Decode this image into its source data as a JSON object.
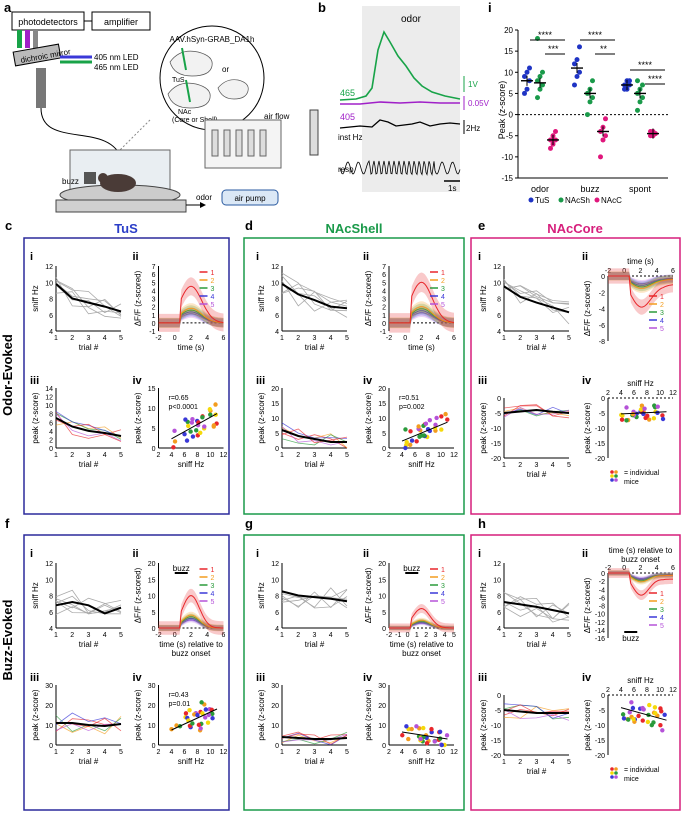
{
  "panel_letters": [
    "a",
    "b",
    "i",
    "c",
    "d",
    "e",
    "f",
    "g",
    "h"
  ],
  "colors": {
    "tus": "#1f34c4",
    "nacsh": "#1a9a4a",
    "nacc": "#e0177c",
    "green": "#18a348",
    "purple": "#a020c8",
    "red": "#e8262b",
    "orange": "#f39c1f",
    "t3": "#2a9a3b",
    "t4": "#3a38d8",
    "t5": "#b552d8",
    "grey": "#999999"
  },
  "trial_colors": [
    "#e8262b",
    "#f39c1f",
    "#2a9a3b",
    "#3a38d8",
    "#b552d8"
  ],
  "panel_a": {
    "photodetectors": "photodetectors",
    "amplifier": "amplifier",
    "mirror": "dichroic mirror",
    "led405": "405 nm LED",
    "led465": "465 nm LED",
    "virus": "AAV.hSyn-GRAB_DA1h",
    "or": "or",
    "tus": "TuS",
    "nac": "NAc",
    "nac_sub": "(Core or Shell)",
    "air_flow": "air flow",
    "buzz": "buzz",
    "odor": "odor",
    "air_pump": "air pump"
  },
  "panel_b": {
    "odor": "odor",
    "s465": "465",
    "s405": "405",
    "scale_1v": "1V",
    "scale_005v": "0.05V",
    "inst_hz": "inst Hz",
    "scale_2hz": "2Hz",
    "resp": "resp",
    "scale_1s": "1s"
  },
  "panel_i": {
    "ylabel": "Peak (z-score)",
    "yticks": [
      "-15",
      "-10",
      "-5",
      "0",
      "5",
      "10",
      "15",
      "20"
    ],
    "groups": [
      "odor",
      "buzz",
      "spont"
    ],
    "legend": [
      "TuS",
      "NAcSh",
      "NAcC"
    ],
    "sig": [
      "****",
      "***",
      "****",
      "**",
      "****",
      "****"
    ],
    "chart_data": {
      "type": "scatter",
      "title": "",
      "ylabel": "Peak (z-score)",
      "ylim": [
        -15,
        20
      ],
      "categories": [
        "odor",
        "buzz",
        "spont"
      ],
      "series": [
        {
          "name": "TuS",
          "means": [
            8,
            11,
            7
          ],
          "points": [
            [
              5,
              6,
              8,
              9,
              10,
              11
            ],
            [
              7,
              9,
              10,
              12,
              13,
              16
            ],
            [
              6,
              6,
              7,
              7,
              8,
              8
            ]
          ]
        },
        {
          "name": "NAcSh",
          "means": [
            7.5,
            5,
            5
          ],
          "points": [
            [
              4,
              6,
              7,
              8,
              9,
              10,
              18
            ],
            [
              0,
              3,
              4,
              5,
              6,
              8
            ],
            [
              1,
              3,
              4,
              5,
              6,
              7,
              8
            ]
          ]
        },
        {
          "name": "NAcC",
          "means": [
            -6,
            -4,
            -4.5
          ],
          "points": [
            [
              -8,
              -7,
              -6,
              -6,
              -5,
              -4
            ],
            [
              -10,
              -6,
              -5,
              -4,
              -3,
              -1
            ],
            [
              -5,
              -5,
              -4.5,
              -4,
              -4
            ]
          ]
        }
      ]
    }
  },
  "row_labels": {
    "odor": "Odor-Evoked",
    "buzz": "Buzz-Evoked"
  },
  "regions": {
    "c": "TuS",
    "d": "NAcShell",
    "e": "NAcCore",
    "f": "",
    "g": "",
    "h": ""
  },
  "roman": [
    "i",
    "ii",
    "iii",
    "iv"
  ],
  "axis_text": {
    "sniff_hz": "sniff Hz",
    "trial": "trial #",
    "dff": "ΔF/F (z-scored)",
    "time": "time (s)",
    "peak": "peak (z-score)",
    "rel1": "time (s) relative to",
    "rel2": "buzz onset",
    "buzz": "buzz",
    "individual1": "= individual",
    "individual2": "mice"
  },
  "trial_legend": [
    "1",
    "2",
    "3",
    "4",
    "5"
  ],
  "stats": {
    "c": [
      "r=0.65",
      "p<0.0001"
    ],
    "d": [
      "r=0.51",
      "p=0.002"
    ],
    "f": [
      "r=0.43",
      "p=0.01"
    ]
  },
  "ticks": {
    "trial": [
      "1",
      "2",
      "3",
      "4",
      "5"
    ],
    "sniff_x": [
      "2",
      "4",
      "6",
      "8",
      "10",
      "12"
    ],
    "sniff_y": [
      "4",
      "6",
      "8",
      "10",
      "12"
    ],
    "time_x": [
      "-2",
      "0",
      "2",
      "4",
      "6"
    ],
    "time_x_g": [
      "-2",
      "-1",
      "0",
      "1",
      "2",
      "3",
      "4",
      "5"
    ],
    "tus_dff_y": [
      "-1",
      "0",
      "1",
      "2",
      "3",
      "4",
      "5",
      "6",
      "7"
    ],
    "tus_peak_y": [
      "0",
      "2",
      "4",
      "6",
      "8",
      "10",
      "12",
      "14"
    ],
    "tus_scatter_y": [
      "0",
      "5",
      "10",
      "15"
    ],
    "sh_dff_y": [
      "-1",
      "0",
      "1",
      "2",
      "3",
      "4",
      "5",
      "6",
      "7"
    ],
    "sh_peak_y": [
      "0",
      "5",
      "10",
      "15",
      "20"
    ],
    "sh_scatter_y": [
      "0",
      "5",
      "10",
      "15",
      "20"
    ],
    "core_dff_y": [
      "0",
      "-2",
      "-4",
      "-6",
      "-8"
    ],
    "core_peak_y": [
      "0",
      "-5",
      "-10",
      "-15",
      "-20"
    ],
    "core_scatter_y": [
      "0",
      "-5",
      "-10",
      "-15",
      "-20"
    ],
    "buzz_dff_y": [
      "0",
      "5",
      "10",
      "15",
      "20"
    ],
    "buzz_peak_y": [
      "0",
      "10",
      "20",
      "30"
    ],
    "gb_dff_y": [
      "0",
      "5",
      "10",
      "15",
      "20"
    ],
    "gb_peak_y": [
      "0",
      "10",
      "20",
      "30"
    ],
    "hb_dff_y": [
      "0",
      "-2",
      "-4",
      "-6",
      "-8",
      "-10",
      "-12",
      "-14",
      "-16"
    ],
    "hb_peak_y": [
      "0",
      "-5",
      "-10",
      "-15",
      "-20"
    ]
  },
  "panels_data": {
    "c": {
      "mean_sniff": [
        9.8,
        8.0,
        7.5,
        7.0,
        6.4
      ],
      "mean_peak": [
        7.0,
        5.0,
        4.0,
        3.5,
        2.8
      ],
      "dff_peak": 4.5
    },
    "d": {
      "mean_sniff": [
        9.8,
        8.5,
        7.8,
        7.0,
        6.8
      ],
      "mean_peak": [
        6.0,
        4.0,
        3.0,
        2.0,
        2.0
      ],
      "dff_peak": 5.0
    },
    "e": {
      "mean_sniff": [
        9.5,
        8.2,
        7.5,
        6.9,
        6.3
      ],
      "mean_peak": [
        -5.0,
        -4.5,
        -4.0,
        -4.6,
        -5.0
      ],
      "dff_peak": -3.5
    },
    "f": {
      "mean_sniff": [
        6.8,
        7.2,
        6.8,
        5.8,
        6.5
      ],
      "mean_peak": [
        11,
        11,
        10,
        9.5,
        10.5
      ],
      "dff_peak": 10
    },
    "g": {
      "mean_sniff": [
        8.5,
        8.0,
        7.8,
        7.6,
        7.3
      ],
      "mean_peak": [
        4,
        3.5,
        3,
        3,
        3.5
      ],
      "dff_peak": 6
    },
    "h": {
      "mean_sniff": [
        7.2,
        6.9,
        6.6,
        6.2,
        5.8
      ],
      "mean_peak": [
        -5,
        -5.5,
        -6,
        -6,
        -6
      ],
      "dff_peak": -5
    }
  }
}
